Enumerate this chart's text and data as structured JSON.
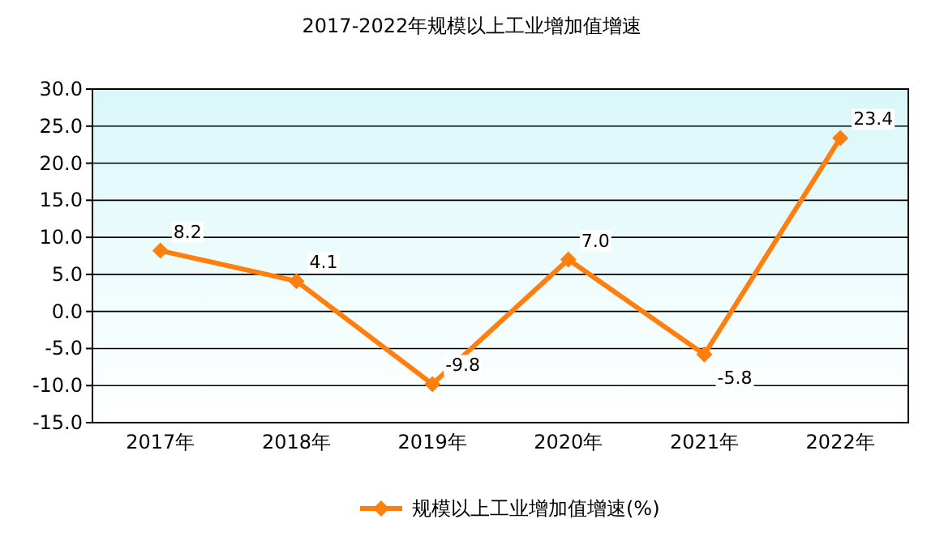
{
  "chart_data": {
    "type": "line",
    "title": "2017-2022年规模以上工业增加值增速",
    "categories": [
      "2017年",
      "2018年",
      "2019年",
      "2020年",
      "2021年",
      "2022年"
    ],
    "series": [
      {
        "name": "规模以上工业增加值增速(%)",
        "color": "#ff7f0e",
        "values": [
          8.2,
          4.1,
          -9.8,
          7.0,
          -5.8,
          23.4
        ],
        "value_labels": [
          "8.2",
          "4.1",
          "-9.8",
          "7.0",
          "-5.8",
          "23.4"
        ]
      }
    ],
    "ylim": [
      -15,
      30
    ],
    "yticks": [
      {
        "value": -15,
        "label": "-15.0"
      },
      {
        "value": -10,
        "label": "-10.0"
      },
      {
        "value": -5,
        "label": "-5.0"
      },
      {
        "value": 0,
        "label": "0.0"
      },
      {
        "value": 5,
        "label": "5.0"
      },
      {
        "value": 10,
        "label": "10.0"
      },
      {
        "value": 15,
        "label": "15.0"
      },
      {
        "value": 20,
        "label": "20.0"
      },
      {
        "value": 25,
        "label": "25.0"
      },
      {
        "value": 30,
        "label": "30.0"
      }
    ],
    "grid": "y",
    "legend": "bottom",
    "marker": "diamond",
    "line_style": "solid",
    "data_labels": true
  }
}
